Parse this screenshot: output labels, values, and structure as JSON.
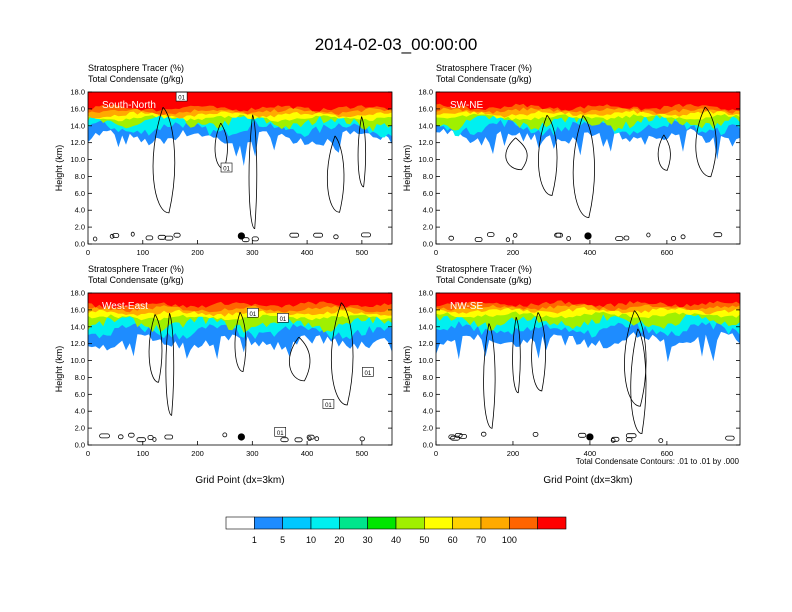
{
  "title": "2014-02-03_00:00:00",
  "footnote": "Total Condensate Contours: .01 to .01 by .000",
  "chart_data": [
    {
      "type": "heatmap",
      "panel_label": "South-North",
      "subtitle_lines": [
        "Stratosphere Tracer   (%)",
        "Total Condensate   (g/kg)"
      ],
      "ylabel": "Height (km)",
      "xlabel": "",
      "xlim": [
        0,
        555
      ],
      "ylim": [
        0,
        18
      ],
      "x_ticks": [
        0,
        100,
        200,
        300,
        400,
        500
      ],
      "y_ticks": [
        0.0,
        2.0,
        4.0,
        6.0,
        8.0,
        10.0,
        12.0,
        14.0,
        16.0,
        18.0
      ],
      "y_tick_labels": [
        "0.0",
        "2.0",
        "4.0",
        "6.0",
        "8.0",
        "10.0",
        "12.0",
        "14.0",
        "16.0",
        "18.0"
      ],
      "tracer_bands_km": {
        "r100": 16.1,
        "r70": 15.7,
        "o60": 15.3,
        "y50": 14.9,
        "l30": 14.4,
        "c10": 13.7,
        "b1": 12.6
      },
      "marker_x": 280,
      "contour_labels": [
        {
          "text": "01",
          "x": 170,
          "y": 17.4
        },
        {
          "text": "01",
          "x": 252,
          "y": 9.0
        }
      ]
    },
    {
      "type": "heatmap",
      "panel_label": "SW-NE",
      "subtitle_lines": [
        "Stratosphere Tracer   (%)",
        "Total Condensate   (g/kg)"
      ],
      "ylabel": "Height (km)",
      "xlabel": "",
      "xlim": [
        0,
        790
      ],
      "ylim": [
        0,
        18
      ],
      "x_ticks": [
        0,
        200,
        400,
        600
      ],
      "y_ticks": [
        0.0,
        2.0,
        4.0,
        6.0,
        8.0,
        10.0,
        12.0,
        14.0,
        16.0,
        18.0
      ],
      "y_tick_labels": [
        "0.0",
        "2.0",
        "4.0",
        "6.0",
        "8.0",
        "10.0",
        "12.0",
        "14.0",
        "16.0",
        "18.0"
      ],
      "tracer_bands_km": {
        "r100": 16.2,
        "r70": 15.8,
        "o60": 15.4,
        "y50": 15.0,
        "l30": 14.4,
        "c10": 13.8,
        "b1": 12.8
      },
      "marker_x": 395,
      "contour_labels": []
    },
    {
      "type": "heatmap",
      "panel_label": "West-East",
      "subtitle_lines": [
        "Stratosphere Tracer   (%)",
        "Total Condensate   (g/kg)"
      ],
      "ylabel": "Height (km)",
      "xlabel": "Grid Point (dx=3km)",
      "xlim": [
        0,
        555
      ],
      "ylim": [
        0,
        18
      ],
      "x_ticks": [
        0,
        100,
        200,
        300,
        400,
        500
      ],
      "y_ticks": [
        0.0,
        2.0,
        4.0,
        6.0,
        8.0,
        10.0,
        12.0,
        14.0,
        16.0,
        18.0
      ],
      "y_tick_labels": [
        "0.0",
        "2.0",
        "4.0",
        "6.0",
        "8.0",
        "10.0",
        "12.0",
        "14.0",
        "16.0",
        "18.0"
      ],
      "tracer_bands_km": {
        "r100": 16.6,
        "r70": 16.1,
        "o60": 15.6,
        "y50": 15.1,
        "l30": 14.3,
        "c10": 13.4,
        "b1": 12.2
      },
      "marker_x": 280,
      "contour_labels": [
        {
          "text": "01",
          "x": 300,
          "y": 15.6
        },
        {
          "text": "01",
          "x": 355,
          "y": 15.0
        },
        {
          "text": "01",
          "x": 510,
          "y": 8.6
        },
        {
          "text": "01",
          "x": 438,
          "y": 4.8
        },
        {
          "text": "01",
          "x": 350,
          "y": 1.5
        }
      ]
    },
    {
      "type": "heatmap",
      "panel_label": "NW-SE",
      "subtitle_lines": [
        "Stratosphere Tracer   (%)",
        "Total Condensate   (g/kg)"
      ],
      "ylabel": "Height (km)",
      "xlabel": "Grid Point (dx=3km)",
      "xlim": [
        0,
        790
      ],
      "ylim": [
        0,
        18
      ],
      "x_ticks": [
        0,
        200,
        400,
        600
      ],
      "y_ticks": [
        0.0,
        2.0,
        4.0,
        6.0,
        8.0,
        10.0,
        12.0,
        14.0,
        16.0,
        18.0
      ],
      "y_tick_labels": [
        "0.0",
        "2.0",
        "4.0",
        "6.0",
        "8.0",
        "10.0",
        "12.0",
        "14.0",
        "16.0",
        "18.0"
      ],
      "tracer_bands_km": {
        "r100": 16.7,
        "r70": 16.3,
        "o60": 15.9,
        "y50": 15.4,
        "l30": 14.6,
        "c10": 13.6,
        "b1": 12.4
      },
      "marker_x": 400,
      "contour_labels": []
    }
  ],
  "colorbar": {
    "colors": [
      "#ffffff",
      "#1e8cff",
      "#00c8ff",
      "#00f0f0",
      "#00e68c",
      "#00e600",
      "#a0f000",
      "#ffff00",
      "#ffd200",
      "#ffaa00",
      "#ff6400",
      "#ff0000"
    ],
    "labels": [
      "1",
      "5",
      "10",
      "20",
      "30",
      "40",
      "50",
      "60",
      "70",
      "100"
    ]
  }
}
